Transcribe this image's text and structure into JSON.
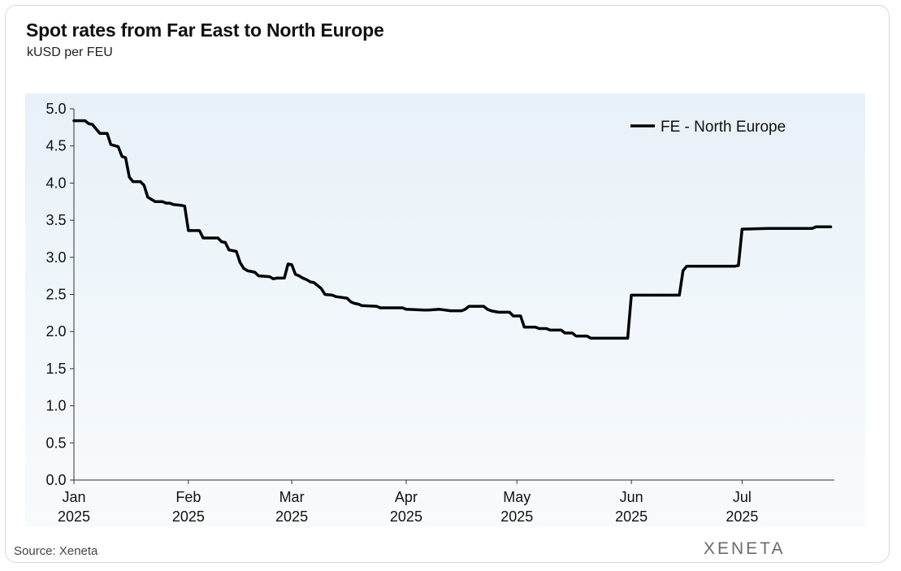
{
  "title": "Spot rates from Far East to North Europe",
  "subtitle": "kUSD per FEU",
  "source": "Source: Xeneta",
  "brand": "XENETA",
  "colors": {
    "line": "#000000",
    "plot_bg_top": "#e8f1f8",
    "plot_bg_bottom": "#f8fbfd"
  },
  "chart_data": {
    "type": "line",
    "title": "Spot rates from Far East to North Europe",
    "ylabel": "kUSD per FEU",
    "xlabel": "",
    "ylim": [
      0,
      5
    ],
    "yticks": [
      "0.0",
      "0.5",
      "1.0",
      "1.5",
      "2.0",
      "2.5",
      "3.0",
      "3.5",
      "4.0",
      "4.5",
      "5.0"
    ],
    "x_range": [
      "2025-01-01",
      "2025-07-26"
    ],
    "xticks": [
      {
        "date": "2025-01-01",
        "month": "Jan",
        "year": "2025"
      },
      {
        "date": "2025-02-01",
        "month": "Feb",
        "year": "2025"
      },
      {
        "date": "2025-03-01",
        "month": "Mar",
        "year": "2025"
      },
      {
        "date": "2025-04-01",
        "month": "Apr",
        "year": "2025"
      },
      {
        "date": "2025-05-01",
        "month": "May",
        "year": "2025"
      },
      {
        "date": "2025-06-01",
        "month": "Jun",
        "year": "2025"
      },
      {
        "date": "2025-07-01",
        "month": "Jul",
        "year": "2025"
      }
    ],
    "legend_position": "top-right",
    "grid": false,
    "series": [
      {
        "name": "FE - North Europe",
        "points": [
          [
            "2025-01-01",
            4.84
          ],
          [
            "2025-01-04",
            4.84
          ],
          [
            "2025-01-05",
            4.8
          ],
          [
            "2025-01-06",
            4.79
          ],
          [
            "2025-01-07",
            4.73
          ],
          [
            "2025-01-08",
            4.67
          ],
          [
            "2025-01-10",
            4.67
          ],
          [
            "2025-01-11",
            4.52
          ],
          [
            "2025-01-13",
            4.49
          ],
          [
            "2025-01-14",
            4.36
          ],
          [
            "2025-01-15",
            4.34
          ],
          [
            "2025-01-16",
            4.08
          ],
          [
            "2025-01-17",
            4.02
          ],
          [
            "2025-01-19",
            4.02
          ],
          [
            "2025-01-20",
            3.97
          ],
          [
            "2025-01-21",
            3.81
          ],
          [
            "2025-01-22",
            3.78
          ],
          [
            "2025-01-23",
            3.75
          ],
          [
            "2025-01-25",
            3.75
          ],
          [
            "2025-01-26",
            3.73
          ],
          [
            "2025-01-27",
            3.73
          ],
          [
            "2025-01-28",
            3.71
          ],
          [
            "2025-01-30",
            3.7
          ],
          [
            "2025-01-31",
            3.69
          ],
          [
            "2025-02-01",
            3.36
          ],
          [
            "2025-02-04",
            3.36
          ],
          [
            "2025-02-05",
            3.26
          ],
          [
            "2025-02-09",
            3.26
          ],
          [
            "2025-02-10",
            3.21
          ],
          [
            "2025-02-11",
            3.2
          ],
          [
            "2025-02-12",
            3.1
          ],
          [
            "2025-02-14",
            3.08
          ],
          [
            "2025-02-15",
            2.93
          ],
          [
            "2025-02-16",
            2.85
          ],
          [
            "2025-02-17",
            2.82
          ],
          [
            "2025-02-19",
            2.8
          ],
          [
            "2025-02-20",
            2.75
          ],
          [
            "2025-02-23",
            2.74
          ],
          [
            "2025-02-24",
            2.71
          ],
          [
            "2025-02-25",
            2.72
          ],
          [
            "2025-02-27",
            2.72
          ],
          [
            "2025-02-28",
            2.91
          ],
          [
            "2025-03-01",
            2.9
          ],
          [
            "2025-03-02",
            2.77
          ],
          [
            "2025-03-03",
            2.75
          ],
          [
            "2025-03-04",
            2.72
          ],
          [
            "2025-03-05",
            2.7
          ],
          [
            "2025-03-06",
            2.67
          ],
          [
            "2025-03-07",
            2.66
          ],
          [
            "2025-03-08",
            2.62
          ],
          [
            "2025-03-09",
            2.58
          ],
          [
            "2025-03-10",
            2.5
          ],
          [
            "2025-03-12",
            2.49
          ],
          [
            "2025-03-13",
            2.47
          ],
          [
            "2025-03-16",
            2.45
          ],
          [
            "2025-03-17",
            2.4
          ],
          [
            "2025-03-18",
            2.38
          ],
          [
            "2025-03-19",
            2.37
          ],
          [
            "2025-03-20",
            2.35
          ],
          [
            "2025-03-24",
            2.34
          ],
          [
            "2025-03-25",
            2.32
          ],
          [
            "2025-03-31",
            2.32
          ],
          [
            "2025-04-01",
            2.3
          ],
          [
            "2025-04-06",
            2.29
          ],
          [
            "2025-04-07",
            2.29
          ],
          [
            "2025-04-10",
            2.3
          ],
          [
            "2025-04-13",
            2.28
          ],
          [
            "2025-04-16",
            2.28
          ],
          [
            "2025-04-17",
            2.3
          ],
          [
            "2025-04-18",
            2.34
          ],
          [
            "2025-04-22",
            2.34
          ],
          [
            "2025-04-23",
            2.3
          ],
          [
            "2025-04-24",
            2.28
          ],
          [
            "2025-04-26",
            2.26
          ],
          [
            "2025-04-29",
            2.26
          ],
          [
            "2025-04-30",
            2.21
          ],
          [
            "2025-05-02",
            2.21
          ],
          [
            "2025-05-03",
            2.06
          ],
          [
            "2025-05-06",
            2.06
          ],
          [
            "2025-05-07",
            2.04
          ],
          [
            "2025-05-09",
            2.04
          ],
          [
            "2025-05-10",
            2.02
          ],
          [
            "2025-05-13",
            2.02
          ],
          [
            "2025-05-14",
            1.98
          ],
          [
            "2025-05-16",
            1.98
          ],
          [
            "2025-05-17",
            1.94
          ],
          [
            "2025-05-20",
            1.94
          ],
          [
            "2025-05-21",
            1.91
          ],
          [
            "2025-05-31",
            1.91
          ],
          [
            "2025-06-01",
            2.49
          ],
          [
            "2025-06-14",
            2.49
          ],
          [
            "2025-06-15",
            2.82
          ],
          [
            "2025-06-16",
            2.88
          ],
          [
            "2025-06-29",
            2.88
          ],
          [
            "2025-06-30",
            2.89
          ],
          [
            "2025-07-01",
            3.38
          ],
          [
            "2025-07-08",
            3.39
          ],
          [
            "2025-07-20",
            3.39
          ],
          [
            "2025-07-21",
            3.41
          ],
          [
            "2025-07-25",
            3.41
          ]
        ]
      }
    ]
  }
}
